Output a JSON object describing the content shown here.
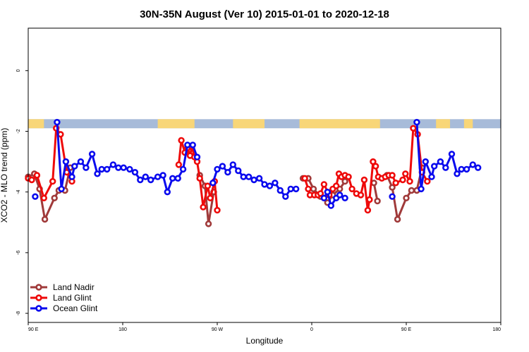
{
  "chart_data": {
    "type": "line",
    "title": "30N-35N August (Ver 10)   2015-01-01 to 2020-12-18",
    "xlabel": "Longitude",
    "ylabel": "XCO2 - MLO trend (ppm)",
    "xlim": [
      -90,
      180
    ],
    "ylim": [
      -8.3,
      1.4
    ],
    "x_ticks": [
      {
        "value": -90,
        "label": "90 E"
      },
      {
        "value": -36,
        "label": "180"
      },
      {
        "value": 18,
        "label": "90 W"
      },
      {
        "value": 72,
        "label": "0"
      },
      {
        "value": 126,
        "label": "90 E"
      },
      {
        "value": 180,
        "label": "180"
      }
    ],
    "y_ticks": [
      {
        "value": 0,
        "label": "0"
      },
      {
        "value": -2,
        "label": "-2"
      },
      {
        "value": -4,
        "label": "-4"
      },
      {
        "value": -6,
        "label": "-6"
      },
      {
        "value": -8,
        "label": "-8"
      }
    ],
    "grid": false,
    "legend_position": "bottom-left",
    "land_sea_band": {
      "y_top": -1.6,
      "y_bottom": -1.9,
      "land_color": "#f8d678",
      "ocean_color": "#a7bbd9",
      "land_segments": [
        [
          -90,
          -81
        ],
        [
          -16,
          5
        ],
        [
          27,
          45
        ],
        [
          65,
          111
        ],
        [
          143,
          151
        ],
        [
          159,
          164
        ]
      ]
    },
    "series": [
      {
        "name": "Land Nadir",
        "color": "#a03a3a",
        "segments": [
          [
            [
              -90,
              -3.5
            ],
            [
              -86.5,
              -3.4
            ],
            [
              -83.5,
              -3.9
            ],
            [
              -80.5,
              -4.9
            ],
            [
              -75,
              -4.2
            ],
            [
              -72.5,
              -3.95
            ],
            [
              -69,
              -3.95
            ],
            [
              -66,
              -3.2
            ]
          ],
          [
            [
              8,
              -3.45
            ],
            [
              11,
              -3.8
            ],
            [
              13,
              -5.05
            ],
            [
              16,
              -4.0
            ]
          ],
          [
            [
              67,
              -3.55
            ],
            [
              70,
              -3.55
            ],
            [
              73,
              -3.9
            ],
            [
              77,
              -4.15
            ],
            [
              79,
              -4.2
            ],
            [
              81,
              -4.35
            ],
            [
              84,
              -4.1
            ],
            [
              88,
              -3.9
            ],
            [
              91,
              -3.65
            ]
          ],
          [
            [
              107.5,
              -3.7
            ],
            [
              109.5,
              -4.3
            ]
          ],
          [
            [
              115,
              -3.45
            ],
            [
              118,
              -3.85
            ],
            [
              121,
              -4.9
            ],
            [
              126,
              -4.2
            ],
            [
              129,
              -3.95
            ],
            [
              132,
              -3.95
            ],
            [
              135,
              -3.2
            ]
          ]
        ]
      },
      {
        "name": "Land Glint",
        "color": "#ee0a0a",
        "segments": [
          [
            [
              -90,
              -3.55
            ],
            [
              -88,
              -3.6
            ],
            [
              -85,
              -3.45
            ],
            [
              -81,
              -4.2
            ],
            [
              -76,
              -3.65
            ],
            [
              -74,
              -1.9
            ],
            [
              -71.5,
              -2.1
            ],
            [
              -68,
              -3.35
            ],
            [
              -65,
              -3.65
            ]
          ],
          [
            [
              -4,
              -3.1
            ],
            [
              -2.5,
              -2.3
            ],
            [
              -0.5,
              -2.7
            ],
            [
              1,
              -2.55
            ],
            [
              2.5,
              -2.8
            ],
            [
              3.5,
              -2.5
            ],
            [
              5,
              -2.85
            ],
            [
              6.5,
              -3.0
            ],
            [
              8,
              -3.55
            ],
            [
              10,
              -4.5
            ],
            [
              12.5,
              -3.8
            ],
            [
              14,
              -4.2
            ],
            [
              16.5,
              -3.65
            ],
            [
              18,
              -4.6
            ]
          ],
          [
            [
              68,
              -3.55
            ],
            [
              70,
              -3.9
            ],
            [
              71,
              -4.1
            ],
            [
              73.5,
              -4.1
            ],
            [
              75.5,
              -4.1
            ],
            [
              77,
              -4.05
            ],
            [
              79,
              -3.75
            ],
            [
              82,
              -4.1
            ],
            [
              84,
              -3.9
            ],
            [
              86,
              -3.8
            ],
            [
              87.5,
              -3.4
            ],
            [
              89,
              -3.5
            ],
            [
              91,
              -3.45
            ],
            [
              93,
              -3.5
            ],
            [
              95,
              -3.9
            ],
            [
              97.5,
              -4.05
            ],
            [
              100,
              -4.1
            ],
            [
              102,
              -3.6
            ],
            [
              104,
              -4.6
            ],
            [
              105,
              -4.25
            ],
            [
              107,
              -3.0
            ],
            [
              108.5,
              -3.15
            ],
            [
              110,
              -3.5
            ],
            [
              112,
              -3.55
            ],
            [
              114,
              -3.5
            ],
            [
              116,
              -3.45
            ],
            [
              118,
              -3.45
            ],
            [
              120,
              -3.7
            ],
            [
              124,
              -3.6
            ],
            [
              125.5,
              -3.4
            ],
            [
              128,
              -3.65
            ],
            [
              130,
              -1.9
            ],
            [
              132.5,
              -2.1
            ],
            [
              135,
              -3.35
            ],
            [
              138,
              -3.65
            ]
          ]
        ]
      },
      {
        "name": "Ocean Glint",
        "color": "#0a0aee",
        "segments": [
          [
            [
              -86,
              -4.15
            ]
          ],
          [
            [
              -73.5,
              -1.7
            ],
            [
              -71,
              -3.9
            ],
            [
              -68.5,
              -3.0
            ],
            [
              -65,
              -3.5
            ],
            [
              -63.5,
              -3.15
            ],
            [
              -60,
              -3.0
            ],
            [
              -57,
              -3.2
            ],
            [
              -53.5,
              -2.75
            ],
            [
              -50.5,
              -3.4
            ],
            [
              -48,
              -3.25
            ],
            [
              -45,
              -3.25
            ],
            [
              -41.5,
              -3.1
            ],
            [
              -38.5,
              -3.2
            ],
            [
              -35.5,
              -3.2
            ],
            [
              -32,
              -3.25
            ],
            [
              -29,
              -3.35
            ],
            [
              -26,
              -3.6
            ],
            [
              -23,
              -3.5
            ],
            [
              -20,
              -3.6
            ],
            [
              -16,
              -3.5
            ],
            [
              -13,
              -3.45
            ],
            [
              -10.5,
              -4.0
            ],
            [
              -7.5,
              -3.55
            ],
            [
              -4.5,
              -3.55
            ],
            [
              -1.5,
              -3.25
            ],
            [
              1,
              -2.45
            ],
            [
              4,
              -2.45
            ],
            [
              6.5,
              -2.85
            ]
          ],
          [
            [
              15.5,
              -3.7
            ],
            [
              18,
              -3.25
            ],
            [
              21,
              -3.15
            ],
            [
              24,
              -3.35
            ],
            [
              27,
              -3.1
            ],
            [
              30,
              -3.3
            ],
            [
              33,
              -3.5
            ],
            [
              36,
              -3.5
            ],
            [
              39,
              -3.6
            ],
            [
              42,
              -3.55
            ],
            [
              45,
              -3.75
            ],
            [
              48,
              -3.8
            ],
            [
              51,
              -3.7
            ],
            [
              54,
              -3.95
            ],
            [
              57,
              -4.15
            ],
            [
              60,
              -3.9
            ],
            [
              63,
              -3.9
            ]
          ],
          [
            [
              79,
              -4.2
            ],
            [
              81,
              -4.0
            ],
            [
              83,
              -4.45
            ],
            [
              86,
              -4.2
            ],
            [
              88,
              -4.1
            ],
            [
              91,
              -4.2
            ]
          ],
          [
            [
              118,
              -4.15
            ]
          ],
          [
            [
              132,
              -1.7
            ],
            [
              134.5,
              -3.9
            ],
            [
              137,
              -3.0
            ],
            [
              140.5,
              -3.5
            ],
            [
              142,
              -3.15
            ],
            [
              145.5,
              -3.0
            ],
            [
              148.5,
              -3.2
            ],
            [
              152,
              -2.75
            ],
            [
              155,
              -3.4
            ],
            [
              157.5,
              -3.25
            ],
            [
              160.5,
              -3.25
            ],
            [
              164,
              -3.1
            ],
            [
              167,
              -3.2
            ]
          ]
        ]
      }
    ]
  }
}
